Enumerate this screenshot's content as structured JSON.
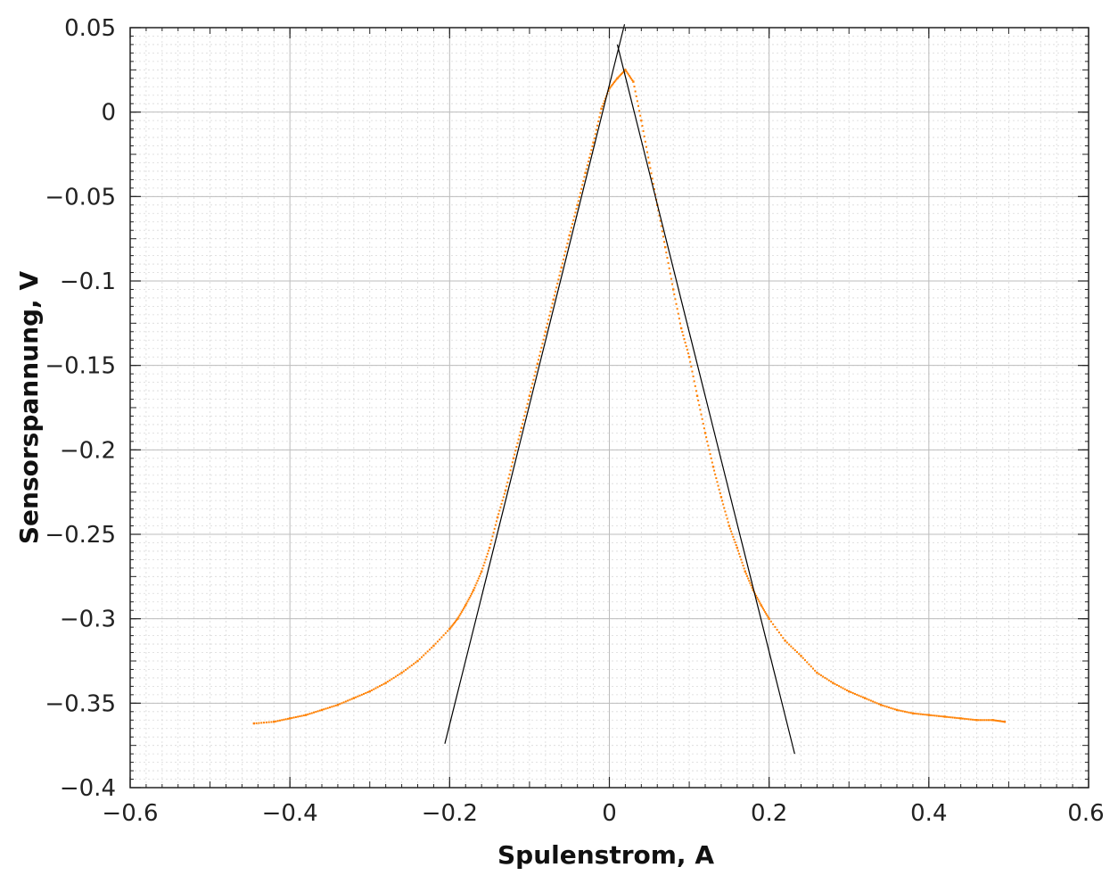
{
  "chart_data": {
    "type": "scatter",
    "title": "",
    "xlabel": "Spulenstrom, A",
    "ylabel": "Sensorspannung, V",
    "xlim": [
      -0.6,
      0.6
    ],
    "ylim": [
      -0.4,
      0.05
    ],
    "x_ticks": [
      -0.6,
      -0.4,
      -0.2,
      0,
      0.2,
      0.4,
      0.6
    ],
    "x_tick_labels": [
      "−0.6",
      "−0.4",
      "−0.2",
      "0",
      "0.2",
      "0.4",
      "0.6"
    ],
    "y_ticks": [
      0.05,
      0,
      -0.05,
      -0.1,
      -0.15,
      -0.2,
      -0.25,
      -0.3,
      -0.35,
      -0.4
    ],
    "y_tick_labels": [
      "0.05",
      "0",
      "−0.05",
      "−0.1",
      "−0.15",
      "−0.2",
      "−0.25",
      "−0.3",
      "−0.35",
      "−0.4"
    ],
    "grid": true,
    "series": [
      {
        "kind": "scatter",
        "color": "#ff8000",
        "points": [
          [
            -0.445,
            -0.362
          ],
          [
            -0.42,
            -0.361
          ],
          [
            -0.4,
            -0.359
          ],
          [
            -0.38,
            -0.357
          ],
          [
            -0.36,
            -0.354
          ],
          [
            -0.34,
            -0.351
          ],
          [
            -0.32,
            -0.347
          ],
          [
            -0.3,
            -0.343
          ],
          [
            -0.28,
            -0.338
          ],
          [
            -0.26,
            -0.332
          ],
          [
            -0.24,
            -0.325
          ],
          [
            -0.22,
            -0.316
          ],
          [
            -0.2,
            -0.306
          ],
          [
            -0.19,
            -0.3
          ],
          [
            -0.18,
            -0.292
          ],
          [
            -0.17,
            -0.283
          ],
          [
            -0.16,
            -0.272
          ],
          [
            -0.15,
            -0.258
          ],
          [
            -0.14,
            -0.24
          ],
          [
            -0.13,
            -0.224
          ],
          [
            -0.12,
            -0.205
          ],
          [
            -0.11,
            -0.187
          ],
          [
            -0.1,
            -0.168
          ],
          [
            -0.09,
            -0.149
          ],
          [
            -0.08,
            -0.13
          ],
          [
            -0.07,
            -0.111
          ],
          [
            -0.06,
            -0.092
          ],
          [
            -0.05,
            -0.073
          ],
          [
            -0.04,
            -0.055
          ],
          [
            -0.03,
            -0.036
          ],
          [
            -0.02,
            -0.018
          ],
          [
            -0.01,
            0.002
          ],
          [
            0.0,
            0.014
          ],
          [
            0.01,
            0.02
          ],
          [
            0.02,
            0.025
          ],
          [
            0.03,
            0.018
          ],
          [
            0.04,
            -0.005
          ],
          [
            0.05,
            -0.03
          ],
          [
            0.06,
            -0.055
          ],
          [
            0.07,
            -0.08
          ],
          [
            0.08,
            -0.105
          ],
          [
            0.09,
            -0.128
          ],
          [
            0.1,
            -0.145
          ],
          [
            0.11,
            -0.168
          ],
          [
            0.12,
            -0.19
          ],
          [
            0.13,
            -0.21
          ],
          [
            0.14,
            -0.228
          ],
          [
            0.15,
            -0.245
          ],
          [
            0.16,
            -0.258
          ],
          [
            0.17,
            -0.272
          ],
          [
            0.18,
            -0.283
          ],
          [
            0.19,
            -0.292
          ],
          [
            0.2,
            -0.3
          ],
          [
            0.22,
            -0.313
          ],
          [
            0.24,
            -0.322
          ],
          [
            0.26,
            -0.332
          ],
          [
            0.28,
            -0.338
          ],
          [
            0.3,
            -0.343
          ],
          [
            0.32,
            -0.347
          ],
          [
            0.34,
            -0.351
          ],
          [
            0.36,
            -0.354
          ],
          [
            0.38,
            -0.356
          ],
          [
            0.4,
            -0.357
          ],
          [
            0.42,
            -0.358
          ],
          [
            0.44,
            -0.359
          ],
          [
            0.46,
            -0.36
          ],
          [
            0.48,
            -0.36
          ],
          [
            0.495,
            -0.361
          ]
        ]
      },
      {
        "kind": "line",
        "color": "#000000",
        "points": [
          [
            -0.206,
            -0.374
          ],
          [
            0.019,
            0.052
          ]
        ]
      },
      {
        "kind": "line",
        "color": "#000000",
        "points": [
          [
            0.01,
            0.04
          ],
          [
            0.232,
            -0.38
          ]
        ]
      }
    ]
  }
}
